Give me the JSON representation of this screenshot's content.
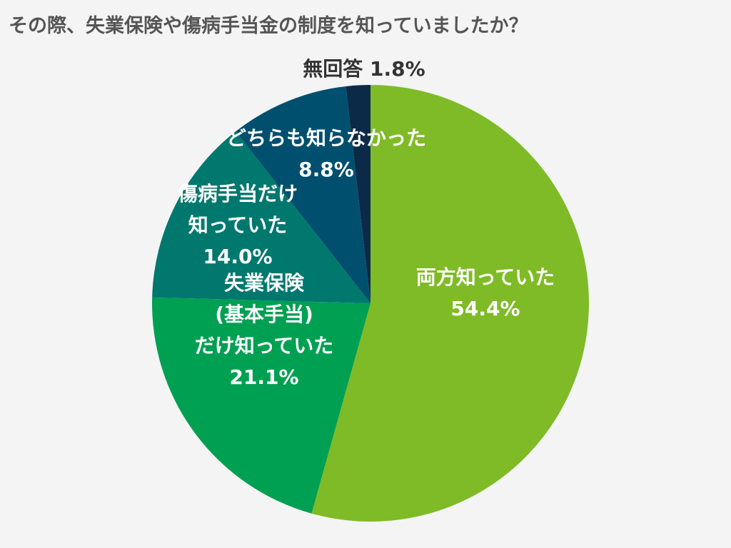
{
  "title": "その際、失業保険や傷病手当金の制度を知っていましたか？",
  "chart_data": {
    "type": "pie",
    "title": "その際、失業保険や傷病手当金の制度を知っていましたか？",
    "slices": [
      {
        "label": "両方知っていた",
        "value": 54.4,
        "value_label": "54.4%",
        "color": "#7fbb26",
        "text_color": "#ffffff"
      },
      {
        "label": "失業保険\n(基本手当)\nだけ知っていた",
        "value": 21.1,
        "value_label": "21.1%",
        "color": "#00a052",
        "text_color": "#ffffff"
      },
      {
        "label": "傷病手当だけ\n知っていた",
        "value": 14.0,
        "value_label": "14.0%",
        "color": "#00786e",
        "text_color": "#ffffff"
      },
      {
        "label": "どちらも知らなかった",
        "value": 8.8,
        "value_label": "8.8%",
        "color": "#004f6e",
        "text_color": "#ffffff"
      },
      {
        "label": "無回答",
        "value": 1.8,
        "value_label": "1.8%",
        "color": "#0b2a48",
        "text_color": "#333333"
      }
    ]
  }
}
